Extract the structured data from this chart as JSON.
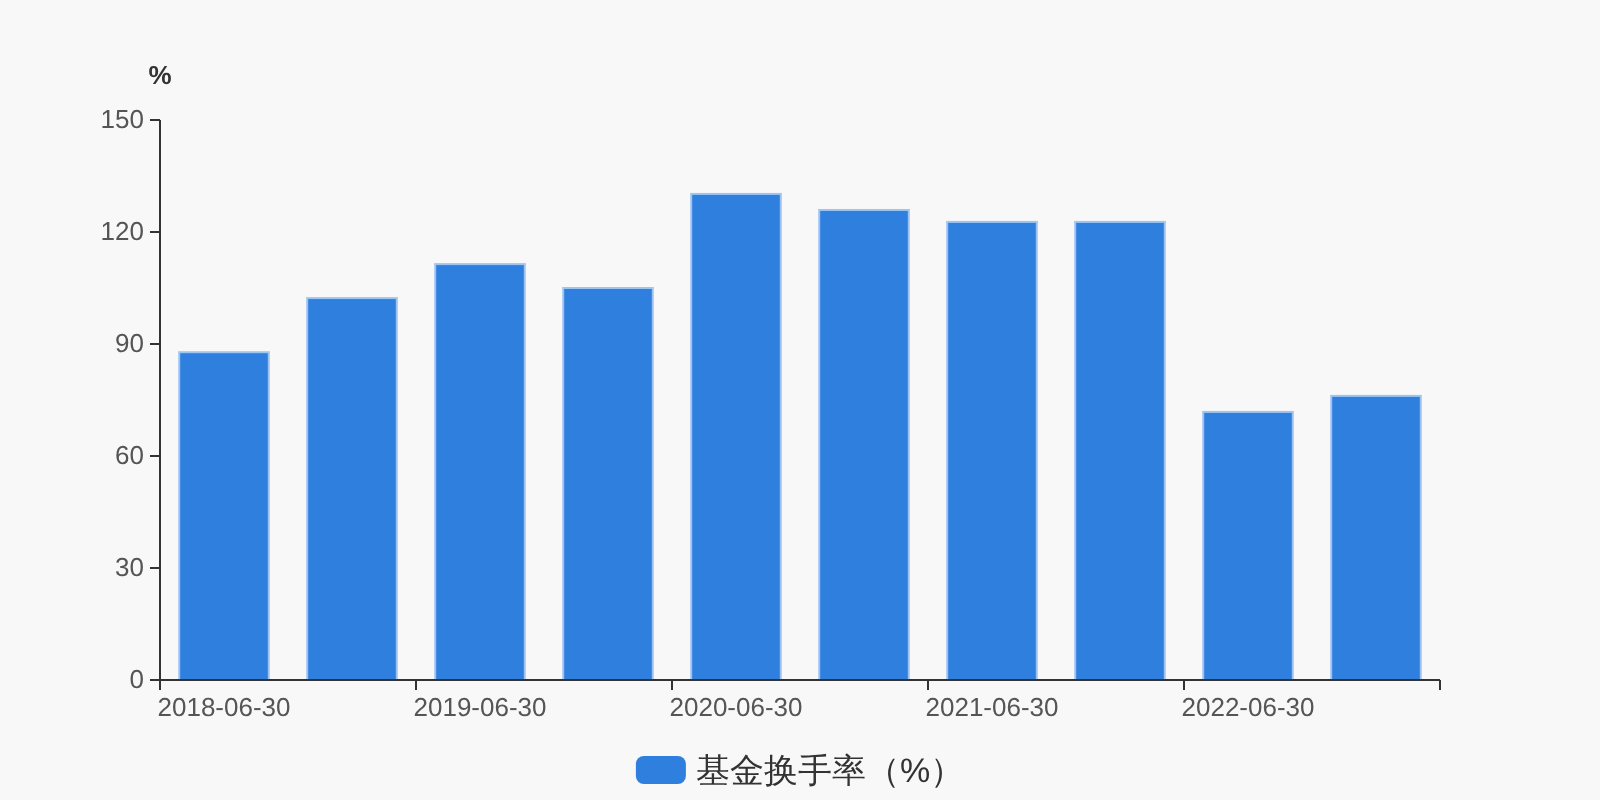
{
  "chart_data": {
    "type": "bar",
    "ylabel": "%",
    "categories": [
      "2018-06-30",
      null,
      "2019-06-30",
      null,
      "2020-06-30",
      null,
      "2021-06-30",
      null,
      "2022-06-30",
      null
    ],
    "series": [
      {
        "name": "基金换手率（%）",
        "color": "#2e7fde",
        "values": [
          87.8,
          102.3,
          111.4,
          105,
          130.2,
          125.9,
          122.7,
          122.7,
          71.8,
          76.1
        ]
      }
    ],
    "ylim": [
      0,
      150
    ],
    "yticks": [
      0,
      30,
      60,
      90,
      120,
      150
    ],
    "grid": false,
    "legend": "bottom"
  }
}
